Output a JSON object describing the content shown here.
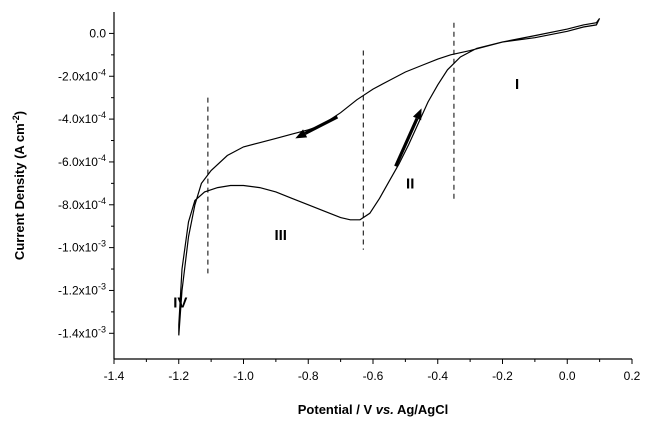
{
  "chart_data": {
    "type": "line",
    "xlabel_parts": [
      "Potential / V ",
      "vs.",
      " Ag/AgCl"
    ],
    "ylabel_parts": [
      "Current Density (A cm",
      "-2",
      ")"
    ],
    "xlim": [
      -1.4,
      0.2
    ],
    "ylim": [
      -0.00152,
      0.0001
    ],
    "x_ticks": [
      -1.4,
      -1.2,
      -1.0,
      -0.8,
      -0.6,
      -0.4,
      -0.2,
      0.0,
      0.2
    ],
    "x_tick_labels": [
      "-1.4",
      "-1.2",
      "-1.0",
      "-0.8",
      "-0.6",
      "-0.4",
      "-0.2",
      "0.0",
      "0.2"
    ],
    "y_ticks": [
      {
        "value": 0.0,
        "label": "0.0",
        "sup": ""
      },
      {
        "value": -0.0002,
        "label": "-2.0x10",
        "sup": "-4"
      },
      {
        "value": -0.0004,
        "label": "-4.0x10",
        "sup": "-4"
      },
      {
        "value": -0.0006,
        "label": "-6.0x10",
        "sup": "-4"
      },
      {
        "value": -0.0008,
        "label": "-8.0x10",
        "sup": "-4"
      },
      {
        "value": -0.001,
        "label": "-1.0x10",
        "sup": "-3"
      },
      {
        "value": -0.0012,
        "label": "-1.2x10",
        "sup": "-3"
      },
      {
        "value": -0.0014,
        "label": "-1.4x10",
        "sup": "-3"
      }
    ],
    "series": [
      {
        "points": [
          [
            0.1,
            7e-05
          ],
          [
            0.09,
            5e-05
          ],
          [
            0.05,
            4e-05
          ],
          [
            0.0,
            2e-05
          ],
          [
            -0.1,
            -1e-05
          ],
          [
            -0.2,
            -4e-05
          ],
          [
            -0.3,
            -8e-05
          ],
          [
            -0.36,
            -0.0001
          ],
          [
            -0.4,
            -0.00012
          ],
          [
            -0.45,
            -0.00015
          ],
          [
            -0.5,
            -0.00018
          ],
          [
            -0.55,
            -0.00022
          ],
          [
            -0.6,
            -0.00026
          ],
          [
            -0.65,
            -0.00031
          ],
          [
            -0.7,
            -0.00037
          ],
          [
            -0.72,
            -0.00039
          ],
          [
            -0.76,
            -0.00043
          ],
          [
            -0.8,
            -0.00045
          ],
          [
            -0.85,
            -0.00047
          ],
          [
            -0.9,
            -0.00049
          ],
          [
            -0.95,
            -0.00051
          ],
          [
            -1.0,
            -0.00053
          ],
          [
            -1.05,
            -0.00057
          ],
          [
            -1.1,
            -0.00064
          ],
          [
            -1.13,
            -0.0007
          ],
          [
            -1.15,
            -0.0008
          ],
          [
            -1.17,
            -0.00095
          ],
          [
            -1.19,
            -0.0012
          ],
          [
            -1.2,
            -0.00141
          ],
          [
            -1.2,
            -0.00136
          ],
          [
            -1.19,
            -0.0011
          ],
          [
            -1.17,
            -0.00088
          ],
          [
            -1.15,
            -0.00078
          ],
          [
            -1.12,
            -0.00074
          ],
          [
            -1.08,
            -0.00072
          ],
          [
            -1.04,
            -0.00071
          ],
          [
            -1.0,
            -0.00071
          ],
          [
            -0.95,
            -0.00072
          ],
          [
            -0.9,
            -0.00074
          ],
          [
            -0.85,
            -0.00077
          ],
          [
            -0.8,
            -0.0008
          ],
          [
            -0.75,
            -0.00083
          ],
          [
            -0.7,
            -0.00086
          ],
          [
            -0.67,
            -0.00087
          ],
          [
            -0.64,
            -0.00087
          ],
          [
            -0.61,
            -0.00084
          ],
          [
            -0.58,
            -0.00077
          ],
          [
            -0.55,
            -0.00069
          ],
          [
            -0.52,
            -0.00061
          ],
          [
            -0.49,
            -0.00052
          ],
          [
            -0.46,
            -0.00042
          ],
          [
            -0.43,
            -0.00032
          ],
          [
            -0.4,
            -0.00024
          ],
          [
            -0.37,
            -0.00017
          ],
          [
            -0.33,
            -0.00011
          ],
          [
            -0.28,
            -7e-05
          ],
          [
            -0.2,
            -4e-05
          ],
          [
            -0.1,
            -2e-05
          ],
          [
            0.0,
            1e-05
          ],
          [
            0.05,
            3e-05
          ],
          [
            0.09,
            4e-05
          ],
          [
            0.1,
            7e-05
          ]
        ]
      }
    ],
    "dividers": [
      {
        "x": -1.11,
        "y_from": -0.00112,
        "y_to": -0.0003
      },
      {
        "x": -0.63,
        "y_from": -0.00101,
        "y_to": -8e-05
      },
      {
        "x": -0.35,
        "y_from": -0.00078,
        "y_to": 5e-05
      }
    ],
    "arrows": [
      {
        "from": [
          -0.71,
          -0.00039
        ],
        "to": [
          -0.84,
          -0.00049
        ]
      },
      {
        "from": [
          -0.53,
          -0.00062
        ],
        "to": [
          -0.45,
          -0.00035
        ]
      }
    ],
    "region_labels": [
      {
        "text": "I",
        "x": -0.155,
        "y": -0.00026
      },
      {
        "text": "II",
        "x": -0.485,
        "y": -0.000725
      },
      {
        "text": "III",
        "x": -0.885,
        "y": -0.000965
      },
      {
        "text": "IV",
        "x": -1.195,
        "y": -0.00128
      }
    ]
  }
}
